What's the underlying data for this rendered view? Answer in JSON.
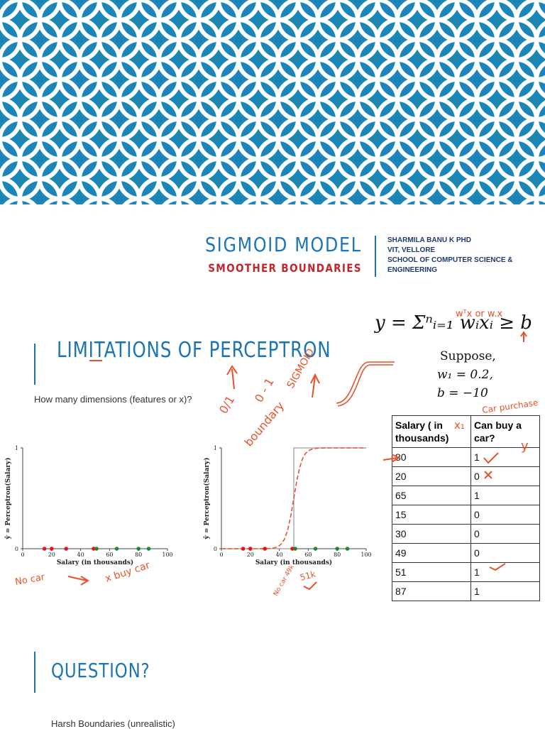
{
  "header": {
    "title": "SIGMOID MODEL",
    "subtitle": "SMOOTHER BOUNDARIES",
    "author_lines": [
      "SHARMILA BANU K PHD",
      "VIT, VELLORE",
      "SCHOOL OF COMPUTER SCIENCE &",
      "ENGINEERING"
    ]
  },
  "colors": {
    "banner": "#1b85b8",
    "accent": "#1b75b4",
    "subtitle": "#c0282d",
    "annotation": "#e8522a",
    "no_car": "#e8121b",
    "car": "#1a8a2a"
  },
  "section1": {
    "title": "LIMITATIONS OF PERCEPTRON",
    "question": "How many dimensions (features or x)?"
  },
  "formula": {
    "main": "y = Σⁿᵢ₌₁ wᵢxᵢ ≥ b",
    "suppose": "Suppose,",
    "w1": "w₁ = 0.2,",
    "b": "b  = −10"
  },
  "table": {
    "headers": [
      "Salary ( in thousands)",
      "Can buy a car?"
    ],
    "rows": [
      [
        "80",
        "1"
      ],
      [
        "20",
        "0"
      ],
      [
        "65",
        "1"
      ],
      [
        "15",
        "0"
      ],
      [
        "30",
        "0"
      ],
      [
        "49",
        "0"
      ],
      [
        "51",
        "1"
      ],
      [
        "87",
        "1"
      ]
    ]
  },
  "chart_data": [
    {
      "type": "scatter",
      "title": "",
      "xlabel": "Salary (in thousands)",
      "ylabel": "ŷ = Perceptron(Salary)",
      "xlim": [
        0,
        100
      ],
      "ylim": [
        0,
        1
      ],
      "xticks": [
        "0",
        "20",
        "40",
        "60",
        "80",
        "100"
      ],
      "yticks": [
        "0",
        "1"
      ],
      "series": [
        {
          "name": "no car",
          "x": [
            15,
            20,
            30,
            49
          ],
          "y": [
            0,
            0,
            0,
            0
          ]
        },
        {
          "name": "car",
          "x": [
            51,
            65,
            80,
            87
          ],
          "y": [
            0,
            0,
            0,
            0
          ]
        }
      ]
    },
    {
      "type": "line",
      "title": "",
      "xlabel": "Salary (in thousands)",
      "ylabel": "ŷ = Perceptron(Salary)",
      "xlim": [
        0,
        100
      ],
      "ylim": [
        0,
        1
      ],
      "xticks": [
        "0",
        "20",
        "40",
        "60",
        "80",
        "100"
      ],
      "yticks": [
        "0",
        "1"
      ],
      "step": {
        "threshold": 50,
        "low": 0,
        "high": 1
      },
      "series": [
        {
          "name": "no car",
          "x": [
            15,
            20,
            30,
            49
          ],
          "y": [
            0,
            0,
            0,
            0
          ]
        },
        {
          "name": "car",
          "x": [
            51,
            65,
            80,
            87
          ],
          "y": [
            0,
            0,
            0,
            0
          ]
        }
      ]
    }
  ],
  "annotations": {
    "wtx": "wᵀx or w.x",
    "cars_purchase": "Car purchase",
    "x1": "x₁",
    "y": "y",
    "sigmoid": "SIGMOID",
    "zero_one_a": "0/1",
    "zero_one_b": "0 - 1",
    "boundary": "boundary",
    "no_car": "No car",
    "buy_car": "x buy car",
    "no_car_49k": "No car 49k",
    "fifty_one_k": "51k"
  },
  "section2": {
    "title": "QUESTION?",
    "text": "Harsh Boundaries (unrealistic)"
  }
}
